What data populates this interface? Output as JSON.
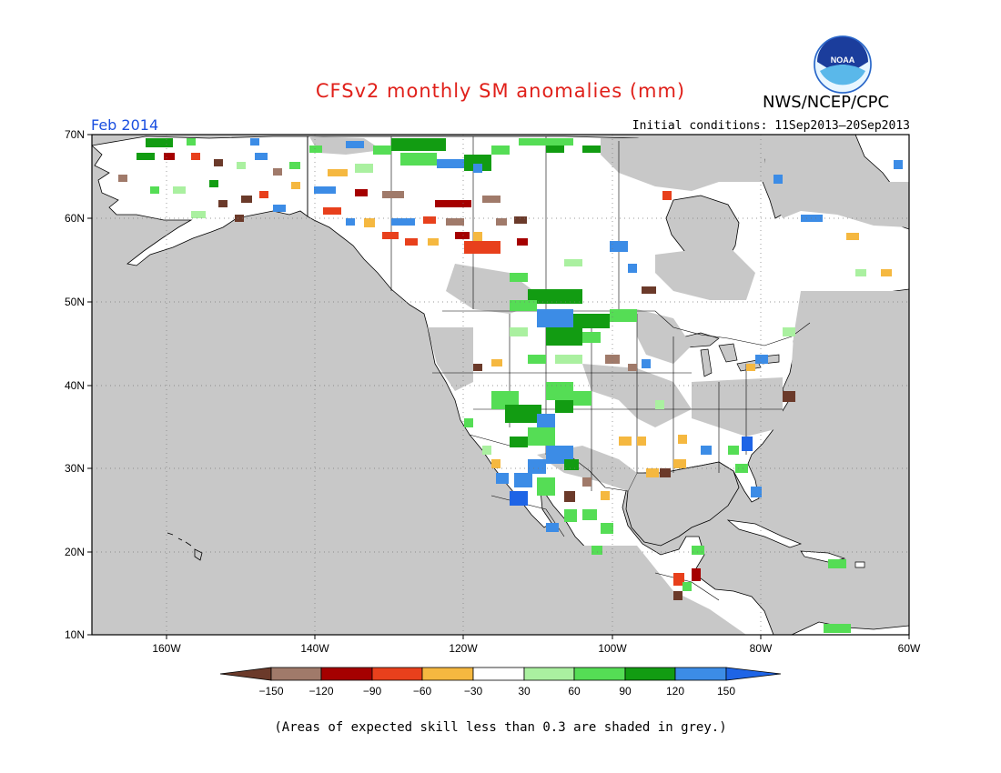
{
  "header": {
    "title": "CFSv2 monthly SM anomalies (mm)",
    "agency": "NWS/NCEP/CPC",
    "logo_text": "NOAA",
    "period": "Feb 2014",
    "initial_conditions": "Initial conditions: 11Sep2013–20Sep2013"
  },
  "map": {
    "lat_labels": [
      "70N",
      "60N",
      "50N",
      "40N",
      "30N",
      "20N",
      "10N"
    ],
    "lon_labels": [
      "160W",
      "140W",
      "120W",
      "100W",
      "80W",
      "60W"
    ],
    "colors": {
      "ocean": "#c8c8c8",
      "land": "#ffffff",
      "coast": "#000000"
    }
  },
  "legend": {
    "labels": [
      "−150",
      "−120",
      "−90",
      "−60",
      "−30",
      "30",
      "60",
      "90",
      "120",
      "150"
    ],
    "colors": [
      "#6b3a2a",
      "#a07a6a",
      "#a50000",
      "#e8401c",
      "#f5b840",
      "#ffffff",
      "#aaf0a0",
      "#55dd55",
      "#129c12",
      "#3c8ce6",
      "#1e64e6"
    ]
  },
  "footnote": "(Areas of expected skill less than 0.3 are shaded in grey.)"
}
